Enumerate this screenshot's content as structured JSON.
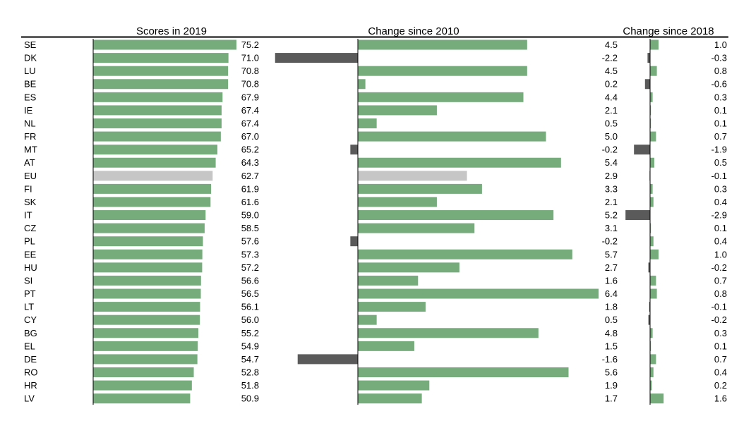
{
  "chart_data": {
    "type": "bar",
    "orientation": "horizontal",
    "colors": {
      "positive": "#76ab7c",
      "negative": "#5a5a5a",
      "highlight": "#c6c6c6",
      "axis": "#000000"
    },
    "highlight_category": "EU",
    "categories": [
      "SE",
      "DK",
      "LU",
      "BE",
      "ES",
      "IE",
      "NL",
      "FR",
      "MT",
      "AT",
      "EU",
      "FI",
      "SK",
      "IT",
      "CZ",
      "PL",
      "EE",
      "HU",
      "SI",
      "PT",
      "LT",
      "CY",
      "BG",
      "EL",
      "DE",
      "RO",
      "HR",
      "LV"
    ],
    "panels": [
      {
        "title": "Scores in 2019",
        "xlim": [
          0,
          75.2
        ],
        "values": [
          75.2,
          71.0,
          70.8,
          70.8,
          67.9,
          67.4,
          67.4,
          67.0,
          65.2,
          64.3,
          62.7,
          61.9,
          61.6,
          59.0,
          58.5,
          57.6,
          57.3,
          57.2,
          56.6,
          56.5,
          56.1,
          56.0,
          55.2,
          54.9,
          54.7,
          52.8,
          51.8,
          50.9
        ],
        "labels": [
          "75.2",
          "71.0",
          "70.8",
          "70.8",
          "67.9",
          "67.4",
          "67.4",
          "67.0",
          "65.2",
          "64.3",
          "62.7",
          "61.9",
          "61.6",
          "59.0",
          "58.5",
          "57.6",
          "57.3",
          "57.2",
          "56.6",
          "56.5",
          "56.1",
          "56.0",
          "55.2",
          "54.9",
          "54.7",
          "52.8",
          "51.8",
          "50.9"
        ]
      },
      {
        "title": "Change since 2010",
        "xlim": [
          -2.2,
          6.4
        ],
        "values": [
          4.5,
          -2.2,
          4.5,
          0.2,
          4.4,
          2.1,
          0.5,
          5.0,
          -0.2,
          5.4,
          2.9,
          3.3,
          2.1,
          5.2,
          3.1,
          -0.2,
          5.7,
          2.7,
          1.6,
          6.4,
          1.8,
          0.5,
          4.8,
          1.5,
          -1.6,
          5.6,
          1.9,
          1.7
        ],
        "labels": [
          "4.5",
          "-2.2",
          "4.5",
          "0.2",
          "4.4",
          "2.1",
          "0.5",
          "5.0",
          "-0.2",
          "5.4",
          "2.9",
          "3.3",
          "2.1",
          "5.2",
          "3.1",
          "-0.2",
          "5.7",
          "2.7",
          "1.6",
          "6.4",
          "1.8",
          "0.5",
          "4.8",
          "1.5",
          "-1.6",
          "5.6",
          "1.9",
          "1.7"
        ]
      },
      {
        "title": "Change since 2018",
        "xlim": [
          -2.9,
          1.6
        ],
        "values": [
          1.0,
          -0.3,
          0.8,
          -0.6,
          0.3,
          0.1,
          0.1,
          0.7,
          -1.9,
          0.5,
          -0.1,
          0.3,
          0.4,
          -2.9,
          0.1,
          0.4,
          1.0,
          -0.2,
          0.7,
          0.8,
          -0.1,
          -0.2,
          0.3,
          0.1,
          0.7,
          0.4,
          0.2,
          1.6
        ],
        "labels": [
          "1.0",
          "-0.3",
          "0.8",
          "-0.6",
          "0.3",
          "0.1",
          "0.1",
          "0.7",
          "-1.9",
          "0.5",
          "-0.1",
          "0.3",
          "0.4",
          "-2.9",
          "0.1",
          "0.4",
          "1.0",
          "-0.2",
          "0.7",
          "0.8",
          "-0.1",
          "-0.2",
          "0.3",
          "0.1",
          "0.7",
          "0.4",
          "0.2",
          "1.6"
        ]
      }
    ]
  }
}
